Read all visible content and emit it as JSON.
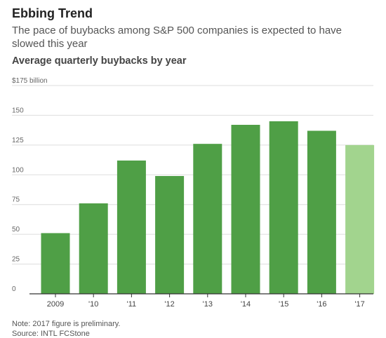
{
  "title": "Ebbing Trend",
  "subtitle": "The pace of buybacks among S&P 500 companies is expected to have slowed this year",
  "chart_heading": "Average quarterly buybacks by year",
  "note": "Note: 2017 figure is preliminary.",
  "source": "Source: INTL FCStone",
  "colors": {
    "bar": "#4f9f46",
    "bar_preliminary": "#a2d48e",
    "grid": "#dddddd",
    "axis": "#333333",
    "tick_text": "#666666"
  },
  "chart_data": {
    "type": "bar",
    "categories": [
      "2009",
      "'10",
      "'11",
      "'12",
      "'13",
      "'14",
      "'15",
      "'16",
      "'17"
    ],
    "values": [
      51,
      76,
      112,
      99,
      126,
      142,
      145,
      137,
      125
    ],
    "preliminary": [
      false,
      false,
      false,
      false,
      false,
      false,
      false,
      false,
      true
    ],
    "y_ticks": [
      0,
      25,
      50,
      75,
      100,
      125,
      150,
      175
    ],
    "y_tick_labels": [
      "0",
      "25",
      "50",
      "75",
      "100",
      "125",
      "150",
      "$175 billion"
    ],
    "ylim": [
      0,
      175
    ],
    "grid": true,
    "xlabel": "",
    "ylabel": ""
  }
}
